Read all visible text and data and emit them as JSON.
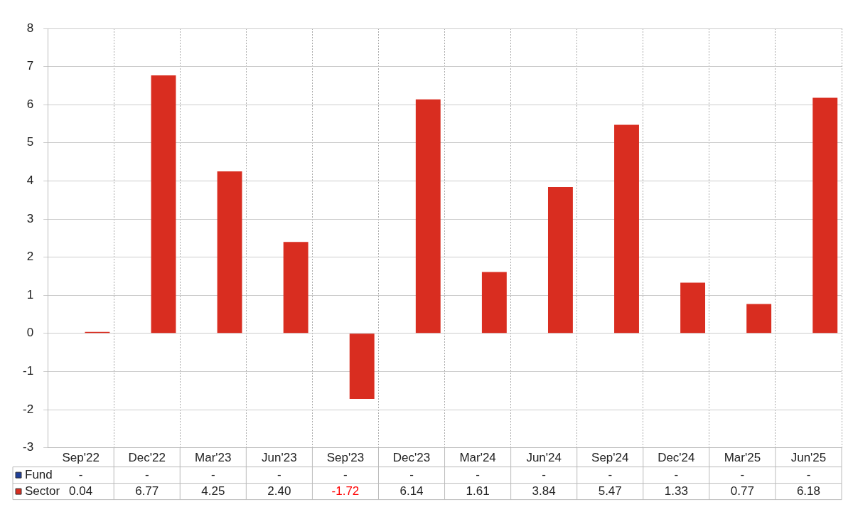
{
  "chart_data": {
    "type": "bar",
    "categories": [
      "Sep'22",
      "Dec'22",
      "Mar'23",
      "Jun'23",
      "Sep'23",
      "Dec'23",
      "Mar'24",
      "Jun'24",
      "Sep'24",
      "Dec'24",
      "Mar'25",
      "Jun'25"
    ],
    "series": [
      {
        "name": "Fund",
        "color": "#1f3f99",
        "values": [
          null,
          null,
          null,
          null,
          null,
          null,
          null,
          null,
          null,
          null,
          null,
          null
        ],
        "value_labels": [
          "-",
          "-",
          "-",
          "-",
          "-",
          "-",
          "-",
          "-",
          "-",
          "-",
          "-",
          "-"
        ]
      },
      {
        "name": "Sector",
        "color": "#d92d20",
        "values": [
          0.04,
          6.77,
          4.25,
          2.4,
          -1.72,
          6.14,
          1.61,
          3.84,
          5.47,
          1.33,
          0.77,
          6.18
        ],
        "value_labels": [
          "0.04",
          "6.77",
          "4.25",
          "2.40",
          "-1.72",
          "6.14",
          "1.61",
          "3.84",
          "5.47",
          "1.33",
          "0.77",
          "6.18"
        ]
      }
    ],
    "ylim": [
      -3,
      8
    ],
    "yticks": [
      -3,
      -2,
      -1,
      0,
      1,
      2,
      3,
      4,
      5,
      6,
      7,
      8
    ],
    "grid": true,
    "legend": "bottom"
  }
}
